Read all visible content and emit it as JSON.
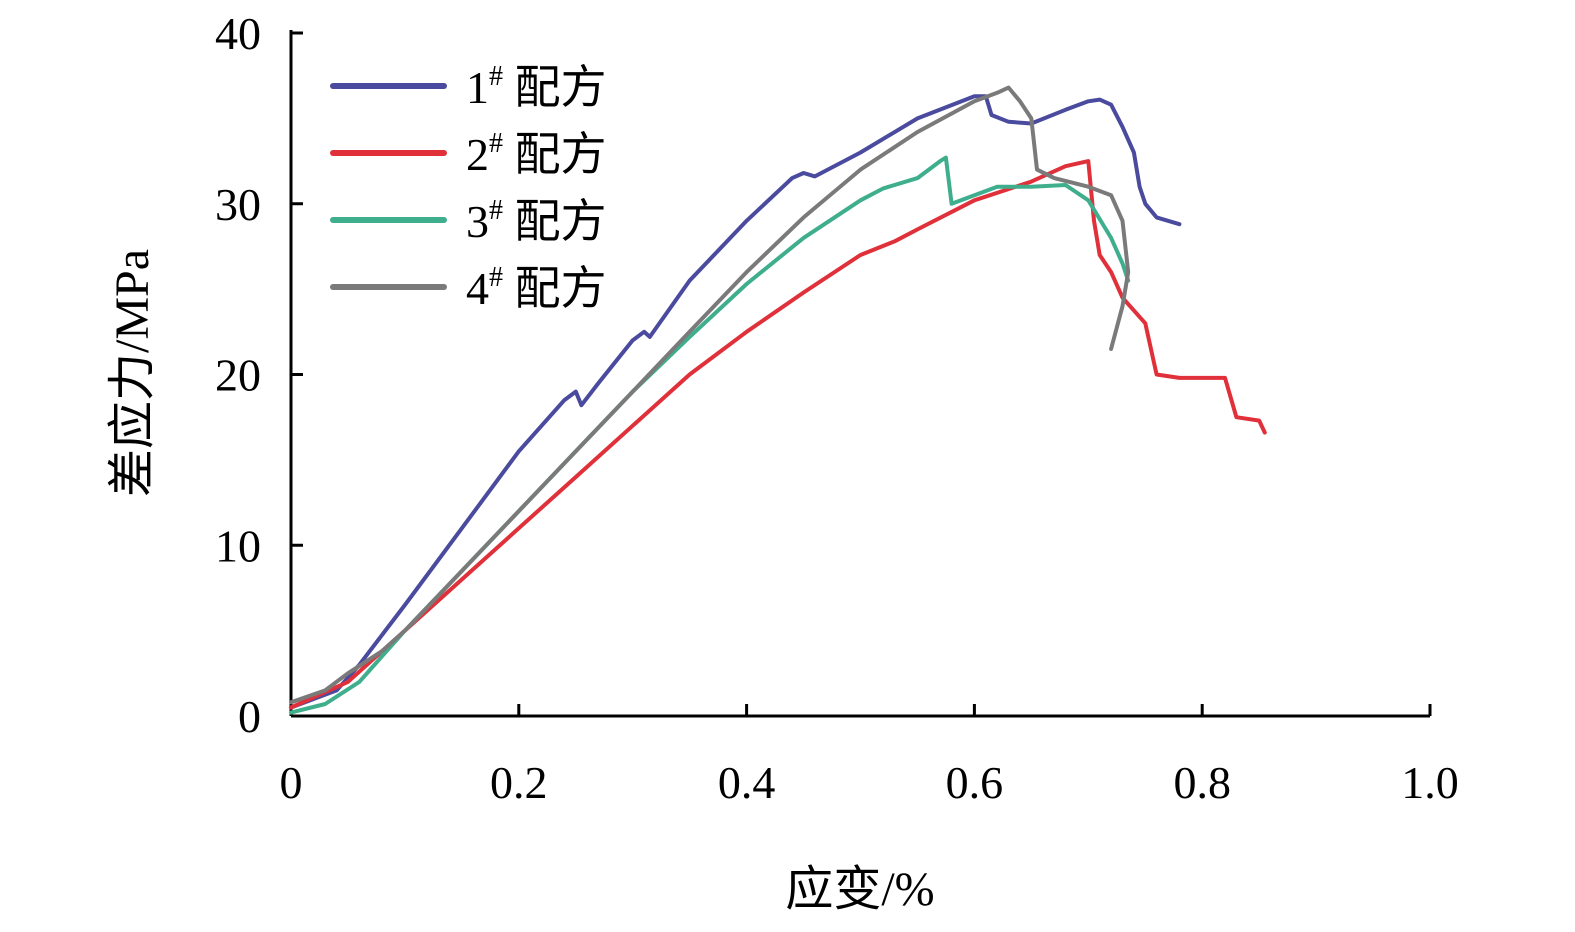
{
  "chart_data": {
    "type": "line",
    "title": "",
    "xlabel": "应变/%",
    "ylabel": "差应力/MPa",
    "xlim": [
      0,
      1.0
    ],
    "ylim": [
      0,
      40
    ],
    "xticks": [
      0,
      0.2,
      0.4,
      0.6,
      0.8,
      1.0
    ],
    "xtick_labels": [
      "0",
      "0.2",
      "0.4",
      "0.6",
      "0.8",
      "1.0"
    ],
    "yticks": [
      0,
      10,
      20,
      30,
      40
    ],
    "ytick_labels": [
      "0",
      "10",
      "20",
      "30",
      "40"
    ],
    "grid": false,
    "legend_position": "top-left",
    "series": [
      {
        "name": "1",
        "sup": "#",
        "suffix": " 配方",
        "color": "#4a4a9e",
        "points": [
          [
            0,
            0.5
          ],
          [
            0.04,
            1.5
          ],
          [
            0.06,
            3
          ],
          [
            0.1,
            6.5
          ],
          [
            0.15,
            11
          ],
          [
            0.2,
            15.5
          ],
          [
            0.24,
            18.5
          ],
          [
            0.25,
            19
          ],
          [
            0.255,
            18.2
          ],
          [
            0.27,
            19.5
          ],
          [
            0.3,
            22
          ],
          [
            0.31,
            22.5
          ],
          [
            0.315,
            22.2
          ],
          [
            0.35,
            25.5
          ],
          [
            0.4,
            29
          ],
          [
            0.44,
            31.5
          ],
          [
            0.45,
            31.8
          ],
          [
            0.46,
            31.6
          ],
          [
            0.5,
            33
          ],
          [
            0.55,
            35
          ],
          [
            0.6,
            36.3
          ],
          [
            0.61,
            36.3
          ],
          [
            0.615,
            35.2
          ],
          [
            0.63,
            34.8
          ],
          [
            0.65,
            34.7
          ],
          [
            0.68,
            35.5
          ],
          [
            0.7,
            36
          ],
          [
            0.71,
            36.1
          ],
          [
            0.72,
            35.8
          ],
          [
            0.73,
            34.5
          ],
          [
            0.74,
            33
          ],
          [
            0.745,
            31
          ],
          [
            0.75,
            30
          ],
          [
            0.76,
            29.2
          ],
          [
            0.78,
            28.8
          ]
        ]
      },
      {
        "name": "2",
        "sup": "#",
        "suffix": " 配方",
        "color": "#e0303a",
        "points": [
          [
            0,
            0.5
          ],
          [
            0.05,
            2
          ],
          [
            0.1,
            5
          ],
          [
            0.15,
            8
          ],
          [
            0.2,
            11
          ],
          [
            0.25,
            14
          ],
          [
            0.3,
            17
          ],
          [
            0.35,
            20
          ],
          [
            0.4,
            22.5
          ],
          [
            0.45,
            24.8
          ],
          [
            0.5,
            27
          ],
          [
            0.53,
            27.8
          ],
          [
            0.55,
            28.5
          ],
          [
            0.6,
            30.2
          ],
          [
            0.65,
            31.3
          ],
          [
            0.68,
            32.2
          ],
          [
            0.7,
            32.5
          ],
          [
            0.705,
            29
          ],
          [
            0.71,
            27
          ],
          [
            0.72,
            26
          ],
          [
            0.73,
            24.5
          ],
          [
            0.75,
            23
          ],
          [
            0.76,
            20
          ],
          [
            0.78,
            19.8
          ],
          [
            0.82,
            19.8
          ],
          [
            0.83,
            17.5
          ],
          [
            0.85,
            17.3
          ],
          [
            0.855,
            16.6
          ]
        ]
      },
      {
        "name": "3",
        "sup": "#",
        "suffix": " 配方",
        "color": "#3fae8c",
        "points": [
          [
            0,
            0.2
          ],
          [
            0.03,
            0.7
          ],
          [
            0.06,
            2
          ],
          [
            0.08,
            3.5
          ],
          [
            0.1,
            5
          ],
          [
            0.15,
            8.5
          ],
          [
            0.2,
            12
          ],
          [
            0.25,
            15.5
          ],
          [
            0.3,
            19
          ],
          [
            0.35,
            22.2
          ],
          [
            0.4,
            25.3
          ],
          [
            0.45,
            28
          ],
          [
            0.5,
            30.2
          ],
          [
            0.52,
            30.9
          ],
          [
            0.55,
            31.5
          ],
          [
            0.57,
            32.5
          ],
          [
            0.575,
            32.7
          ],
          [
            0.58,
            30
          ],
          [
            0.6,
            30.5
          ],
          [
            0.62,
            31
          ],
          [
            0.65,
            31
          ],
          [
            0.68,
            31.1
          ],
          [
            0.7,
            30.2
          ],
          [
            0.72,
            28
          ],
          [
            0.73,
            26.5
          ],
          [
            0.735,
            25.5
          ]
        ]
      },
      {
        "name": "4",
        "sup": "#",
        "suffix": " 配方",
        "color": "#7a7a7a",
        "points": [
          [
            0,
            0.8
          ],
          [
            0.03,
            1.5
          ],
          [
            0.05,
            2.5
          ],
          [
            0.08,
            3.8
          ],
          [
            0.1,
            5
          ],
          [
            0.15,
            8.5
          ],
          [
            0.2,
            12
          ],
          [
            0.25,
            15.5
          ],
          [
            0.3,
            19
          ],
          [
            0.35,
            22.5
          ],
          [
            0.4,
            26
          ],
          [
            0.45,
            29.2
          ],
          [
            0.5,
            32
          ],
          [
            0.55,
            34.2
          ],
          [
            0.6,
            36
          ],
          [
            0.62,
            36.5
          ],
          [
            0.63,
            36.8
          ],
          [
            0.64,
            36
          ],
          [
            0.65,
            35
          ],
          [
            0.655,
            32
          ],
          [
            0.67,
            31.5
          ],
          [
            0.7,
            31
          ],
          [
            0.72,
            30.5
          ],
          [
            0.73,
            29
          ],
          [
            0.735,
            26
          ],
          [
            0.73,
            24
          ],
          [
            0.72,
            21.5
          ]
        ]
      }
    ]
  }
}
